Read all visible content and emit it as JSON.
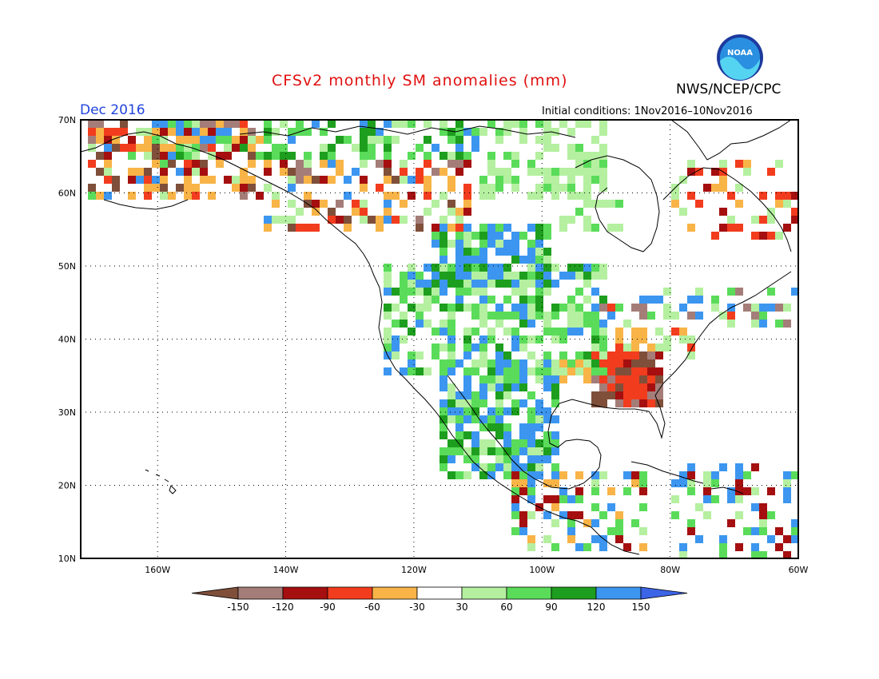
{
  "header": {
    "title": "CFSv2 monthly SM anomalies (mm)",
    "agency": "NWS/NCEP/CPC",
    "period": "Dec 2016",
    "initial_conditions": "Initial conditions: 1Nov2016–10Nov2016",
    "logo_text": "NOAA"
  },
  "map": {
    "lon_range": [
      -172,
      -60
    ],
    "lat_range": [
      10,
      70
    ],
    "lon_ticks": [
      "160W",
      "140W",
      "120W",
      "100W",
      "80W",
      "60W"
    ],
    "lat_ticks": [
      "70N",
      "60N",
      "50N",
      "40N",
      "30N",
      "20N",
      "10N"
    ],
    "grid": "dotted"
  },
  "legend": {
    "labels": [
      "-150",
      "-120",
      "-90",
      "-60",
      "-30",
      "30",
      "60",
      "90",
      "120",
      "150"
    ],
    "colors": [
      "#7f4f3a",
      "#a57d78",
      "#a50f0f",
      "#f23c1e",
      "#f8b447",
      "#ffffff",
      "#b4f0a0",
      "#5adc5a",
      "#1e9e1e",
      "#3c96f0",
      "#3c64e6"
    ]
  },
  "anomaly_palette": {
    "brown": "#7f4f3a",
    "rose": "#a57d78",
    "darkred": "#a50f0f",
    "red": "#f23c1e",
    "orange": "#f8b447",
    "lightgreen": "#b4f0a0",
    "green": "#5adc5a",
    "darkgreen": "#1e9e1e",
    "blue": "#3c96f0"
  }
}
